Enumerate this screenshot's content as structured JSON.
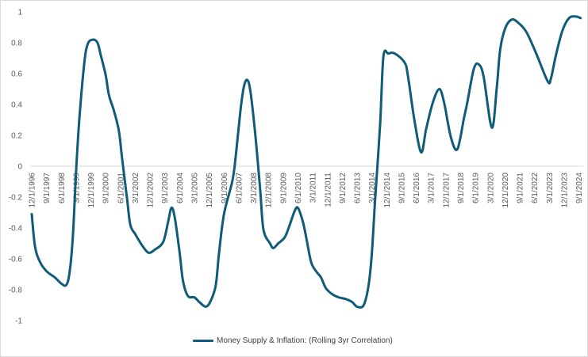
{
  "chart_data": {
    "type": "line",
    "title": "",
    "xlabel": "",
    "ylabel": "",
    "ylim": [
      -1,
      1
    ],
    "y_ticks": [
      "1",
      "0.8",
      "0.6",
      "0.4",
      "0.2",
      "0",
      "-0.2",
      "-0.4",
      "-0.6",
      "-0.8",
      "-1"
    ],
    "x_ticks": [
      "12/1/1996",
      "9/1/1997",
      "6/1/1998",
      "3/1/1999",
      "12/1/1999",
      "9/1/2000",
      "6/1/2001",
      "3/1/2002",
      "12/1/2002",
      "9/1/2003",
      "6/1/2004",
      "3/1/2005",
      "12/1/2005",
      "9/1/2006",
      "6/1/2007",
      "3/1/2008",
      "12/1/2008",
      "9/1/2009",
      "6/1/2010",
      "3/1/2011",
      "12/1/2011",
      "9/1/2012",
      "6/1/2013",
      "3/1/2014",
      "12/1/2014",
      "9/1/2015",
      "6/1/2016",
      "3/1/2017",
      "12/1/2017",
      "9/1/2018",
      "6/1/2019",
      "3/1/2020",
      "12/1/2020",
      "9/1/2021",
      "6/1/2022",
      "3/1/2023",
      "12/1/2023",
      "9/1/2024"
    ],
    "grid": false,
    "legend_position": "bottom",
    "series": [
      {
        "name": "Money Supply & Inflation: (Rolling 3yr Correlation)",
        "color": "#0f5b78",
        "points": [
          [
            "1996-12",
            -0.31
          ],
          [
            "1997-02",
            -0.52
          ],
          [
            "1997-05",
            -0.62
          ],
          [
            "1997-09",
            -0.68
          ],
          [
            "1998-02",
            -0.72
          ],
          [
            "1998-06",
            -0.76
          ],
          [
            "1998-09",
            -0.77
          ],
          [
            "1998-11",
            -0.69
          ],
          [
            "1999-01",
            -0.46
          ],
          [
            "1999-03",
            -0.03
          ],
          [
            "1999-05",
            0.31
          ],
          [
            "1999-08",
            0.67
          ],
          [
            "1999-10",
            0.79
          ],
          [
            "2000-01",
            0.82
          ],
          [
            "2000-04",
            0.8
          ],
          [
            "2000-06",
            0.72
          ],
          [
            "2000-09",
            0.59
          ],
          [
            "2000-11",
            0.46
          ],
          [
            "2001-02",
            0.36
          ],
          [
            "2001-05",
            0.23
          ],
          [
            "2001-07",
            0.05
          ],
          [
            "2001-10",
            -0.21
          ],
          [
            "2001-12",
            -0.38
          ],
          [
            "2002-03",
            -0.44
          ],
          [
            "2002-07",
            -0.51
          ],
          [
            "2002-11",
            -0.56
          ],
          [
            "2003-03",
            -0.54
          ],
          [
            "2003-08",
            -0.49
          ],
          [
            "2003-11",
            -0.36
          ],
          [
            "2004-01",
            -0.27
          ],
          [
            "2004-03",
            -0.33
          ],
          [
            "2004-06",
            -0.56
          ],
          [
            "2004-08",
            -0.74
          ],
          [
            "2004-11",
            -0.84
          ],
          [
            "2005-03",
            -0.85
          ],
          [
            "2005-06",
            -0.88
          ],
          [
            "2005-10",
            -0.91
          ],
          [
            "2006-01",
            -0.87
          ],
          [
            "2006-04",
            -0.77
          ],
          [
            "2006-06",
            -0.56
          ],
          [
            "2006-09",
            -0.31
          ],
          [
            "2007-02",
            -0.1
          ],
          [
            "2007-04",
            0.05
          ],
          [
            "2007-07",
            0.36
          ],
          [
            "2007-09",
            0.51
          ],
          [
            "2007-11",
            0.56
          ],
          [
            "2008-01",
            0.49
          ],
          [
            "2008-04",
            0.21
          ],
          [
            "2008-07",
            -0.15
          ],
          [
            "2008-09",
            -0.41
          ],
          [
            "2009-01",
            -0.5
          ],
          [
            "2009-03",
            -0.53
          ],
          [
            "2009-06",
            -0.5
          ],
          [
            "2009-10",
            -0.46
          ],
          [
            "2010-01",
            -0.38
          ],
          [
            "2010-04",
            -0.29
          ],
          [
            "2010-06",
            -0.27
          ],
          [
            "2010-09",
            -0.36
          ],
          [
            "2010-11",
            -0.46
          ],
          [
            "2011-02",
            -0.62
          ],
          [
            "2011-05",
            -0.68
          ],
          [
            "2011-08",
            -0.72
          ],
          [
            "2011-11",
            -0.79
          ],
          [
            "2012-03",
            -0.83
          ],
          [
            "2012-07",
            -0.85
          ],
          [
            "2012-11",
            -0.86
          ],
          [
            "2013-03",
            -0.88
          ],
          [
            "2013-06",
            -0.91
          ],
          [
            "2013-10",
            -0.9
          ],
          [
            "2014-01",
            -0.77
          ],
          [
            "2014-03",
            -0.56
          ],
          [
            "2014-05",
            -0.21
          ],
          [
            "2014-08",
            0.27
          ],
          [
            "2014-10",
            0.71
          ],
          [
            "2015-01",
            0.73
          ],
          [
            "2015-05",
            0.73
          ],
          [
            "2015-11",
            0.67
          ],
          [
            "2016-01",
            0.58
          ],
          [
            "2016-05",
            0.29
          ],
          [
            "2016-09",
            0.09
          ],
          [
            "2016-12",
            0.24
          ],
          [
            "2017-04",
            0.41
          ],
          [
            "2017-08",
            0.5
          ],
          [
            "2017-11",
            0.41
          ],
          [
            "2018-03",
            0.19
          ],
          [
            "2018-07",
            0.11
          ],
          [
            "2018-11",
            0.31
          ],
          [
            "2019-01",
            0.41
          ],
          [
            "2019-05",
            0.63
          ],
          [
            "2019-08",
            0.66
          ],
          [
            "2019-11",
            0.58
          ],
          [
            "2020-04",
            0.25
          ],
          [
            "2020-07",
            0.51
          ],
          [
            "2020-09",
            0.75
          ],
          [
            "2020-12",
            0.89
          ],
          [
            "2021-04",
            0.95
          ],
          [
            "2021-08",
            0.93
          ],
          [
            "2022-01",
            0.87
          ],
          [
            "2022-07",
            0.73
          ],
          [
            "2023-02",
            0.55
          ],
          [
            "2023-04",
            0.57
          ],
          [
            "2023-07",
            0.72
          ],
          [
            "2023-11",
            0.88
          ],
          [
            "2024-03",
            0.96
          ],
          [
            "2024-07",
            0.97
          ],
          [
            "2024-10",
            0.96
          ]
        ]
      }
    ]
  }
}
